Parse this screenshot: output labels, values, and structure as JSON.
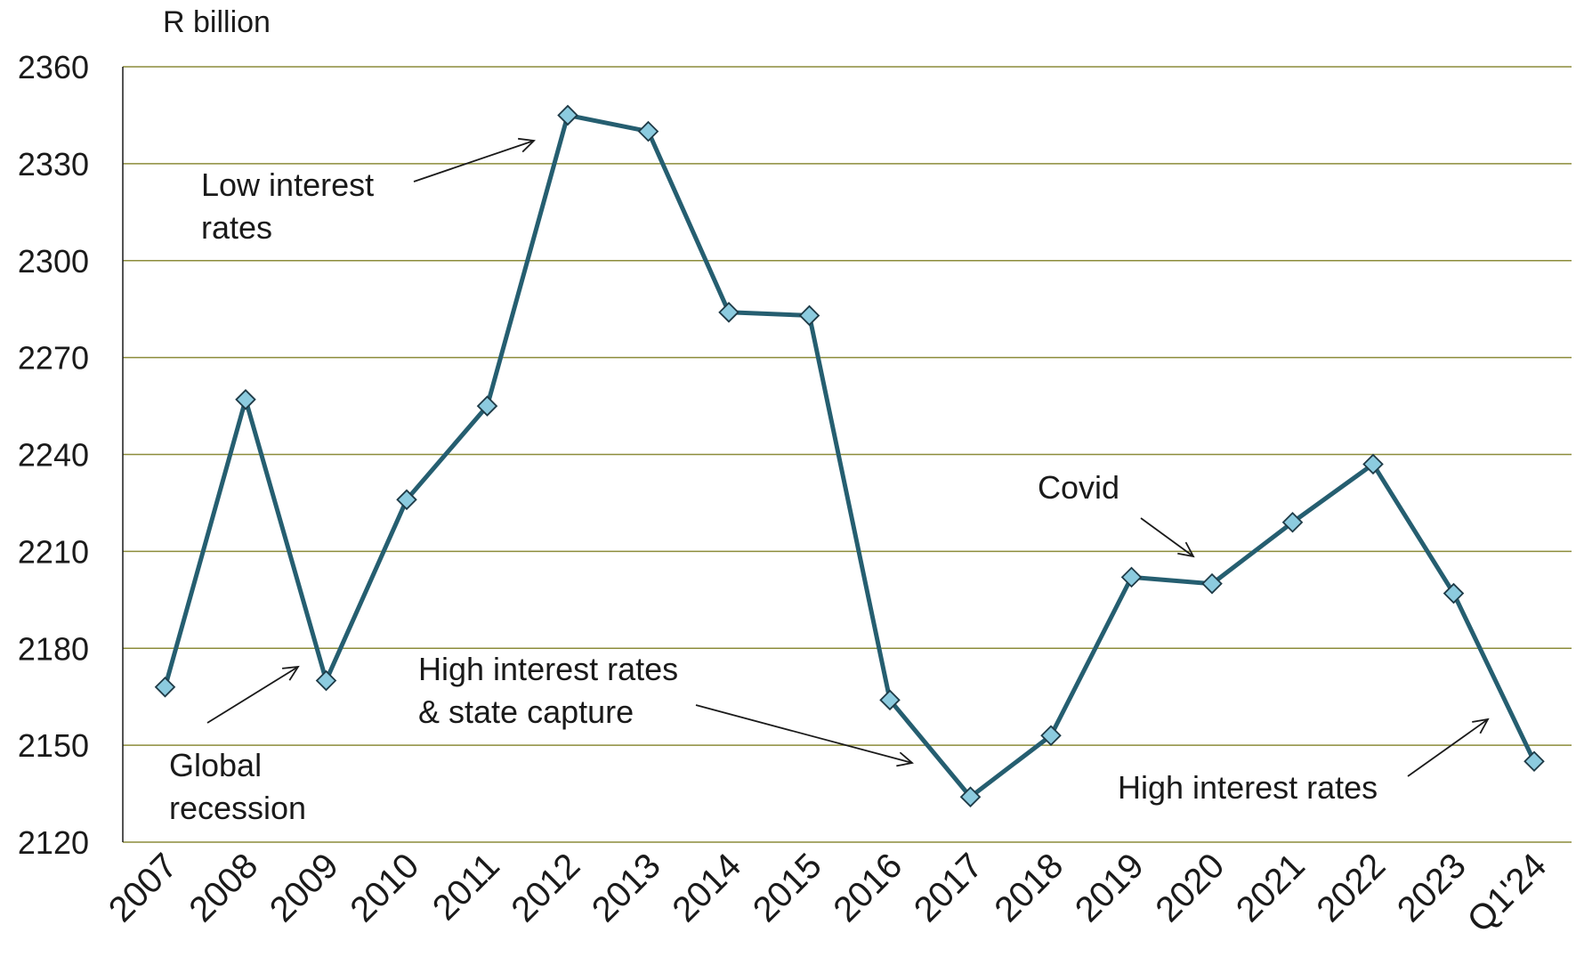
{
  "chart_data": {
    "type": "line",
    "ylabel": "R billion",
    "ylim": [
      2120,
      2360
    ],
    "yticks": [
      2120,
      2150,
      2180,
      2210,
      2240,
      2270,
      2300,
      2330,
      2360
    ],
    "grid": true,
    "categories": [
      "2007",
      "2008",
      "2009",
      "2010",
      "2011",
      "2012",
      "2013",
      "2014",
      "2015",
      "2016",
      "2017",
      "2018",
      "2019",
      "2020",
      "2021",
      "2022",
      "2023",
      "Q1'24"
    ],
    "series": [
      {
        "values": [
          2168,
          2257,
          2170,
          2226,
          2255,
          2345,
          2340,
          2284,
          2283,
          2164,
          2134,
          2153,
          2202,
          2200,
          2219,
          2237,
          2197,
          2145
        ]
      }
    ],
    "annotations": [
      {
        "lines": [
          "Low interest",
          "rates"
        ],
        "points_to": "2012"
      },
      {
        "lines": [
          "Global",
          "recession"
        ],
        "points_to": "2009"
      },
      {
        "lines": [
          "High interest rates",
          "& state capture"
        ],
        "points_to": "2016"
      },
      {
        "lines": [
          "Covid"
        ],
        "points_to": "2020"
      },
      {
        "lines": [
          "High interest rates"
        ],
        "points_to": "Q1'24"
      }
    ],
    "colors": {
      "line": "#255e70",
      "marker_fill": "#8ccbdf",
      "marker_stroke": "#1f3b47",
      "grid": "#8c8c3a"
    }
  }
}
